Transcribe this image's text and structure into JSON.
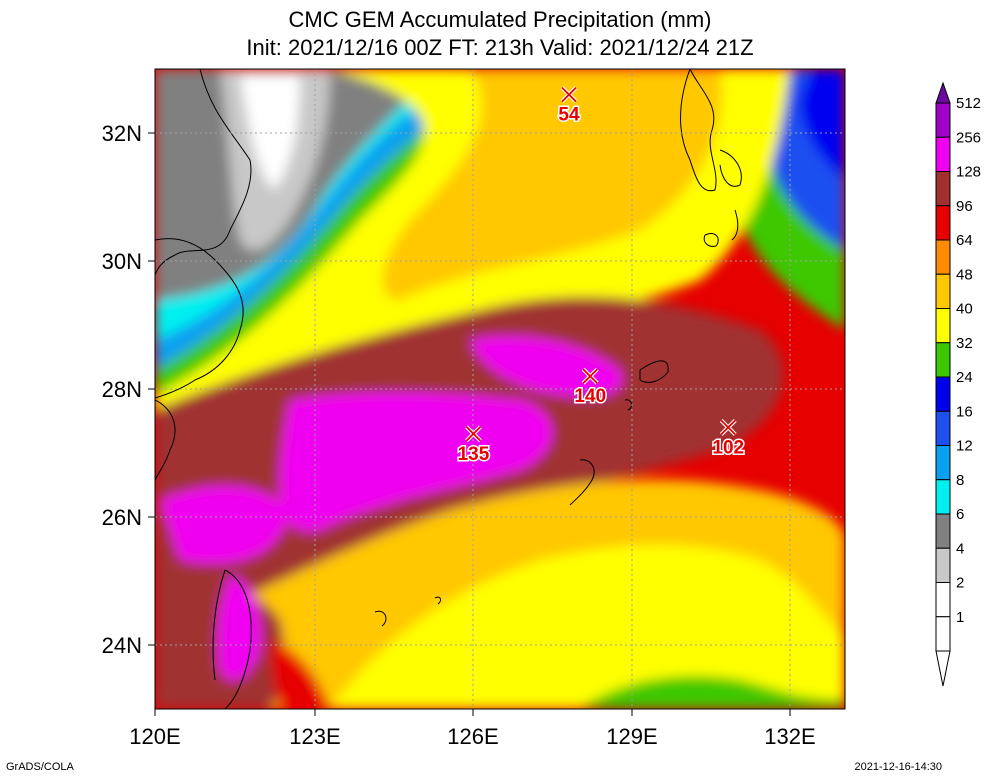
{
  "title": {
    "line1": "CMC GEM Accumulated Precipitation (mm)",
    "line2": "Init: 2021/12/16 00Z  FT: 213h  Valid: 2021/12/24 21Z"
  },
  "axes": {
    "lon_labels": [
      "120E",
      "123E",
      "126E",
      "129E",
      "132E"
    ],
    "lat_labels": [
      "32N",
      "30N",
      "28N",
      "26N",
      "24N"
    ]
  },
  "markers": [
    {
      "value": "54",
      "lon": 127.8,
      "lat": 32.6
    },
    {
      "value": "140",
      "lon": 128.2,
      "lat": 28.2
    },
    {
      "value": "135",
      "lon": 126.0,
      "lat": 27.3
    },
    {
      "value": "102",
      "lon": 130.8,
      "lat": 27.4
    }
  ],
  "legend": {
    "levels": [
      "512",
      "256",
      "128",
      "96",
      "64",
      "48",
      "40",
      "32",
      "24",
      "16",
      "12",
      "8",
      "6",
      "4",
      "2",
      "1"
    ],
    "colors": [
      "#6a0aa0",
      "#a000c8",
      "#f000f0",
      "#a03030",
      "#e60000",
      "#ff8c00",
      "#ffc800",
      "#ffff00",
      "#3cc800",
      "#0000f0",
      "#1e50f0",
      "#0aa0f0",
      "#00f0f0",
      "#808080",
      "#c8c8c8",
      "#ffffff"
    ]
  },
  "footer": {
    "credit": "GrADS/COLA",
    "timestamp": "2021-12-16-14:30"
  }
}
